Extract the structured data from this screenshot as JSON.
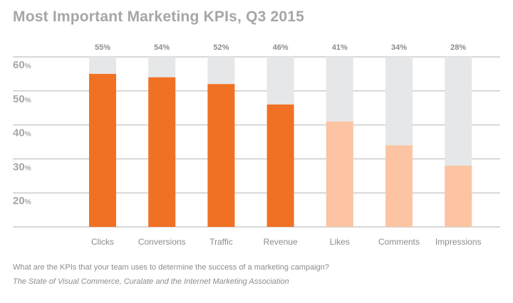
{
  "chart_data": {
    "type": "bar",
    "title": "Most Important Marketing KPIs, Q3 2015",
    "categories": [
      "Clicks",
      "Conversions",
      "Traffic",
      "Revenue",
      "Likes",
      "Comments",
      "Impressions"
    ],
    "values": [
      55,
      54,
      52,
      46,
      41,
      34,
      28
    ],
    "value_labels": [
      "55%",
      "54%",
      "52%",
      "46%",
      "41%",
      "34%",
      "28%"
    ],
    "y_ticks": [
      {
        "value": 60,
        "label": "60",
        "unit": "%"
      },
      {
        "value": 50,
        "label": "50",
        "unit": "%"
      },
      {
        "value": 40,
        "label": "40",
        "unit": "%"
      },
      {
        "value": 30,
        "label": "30",
        "unit": "%"
      },
      {
        "value": 20,
        "label": "20",
        "unit": "%"
      }
    ],
    "ylim": [
      10,
      60
    ],
    "grid": true,
    "xlabel": "",
    "ylabel": "",
    "colors": {
      "highlight": "#f07124",
      "light": "#fcc4a2",
      "background_bar": "#e6e7e8",
      "gridline": "#cccccc",
      "text": "#8c8c8c"
    },
    "highlighted_categories": [
      "Clicks",
      "Conversions",
      "Traffic",
      "Revenue"
    ]
  },
  "footer": {
    "question": "What are the KPIs that your team uses to determine the success of a marketing campaign?",
    "source": "The State of Visual Commerce, Curalate and the Internet Marketing Association"
  }
}
